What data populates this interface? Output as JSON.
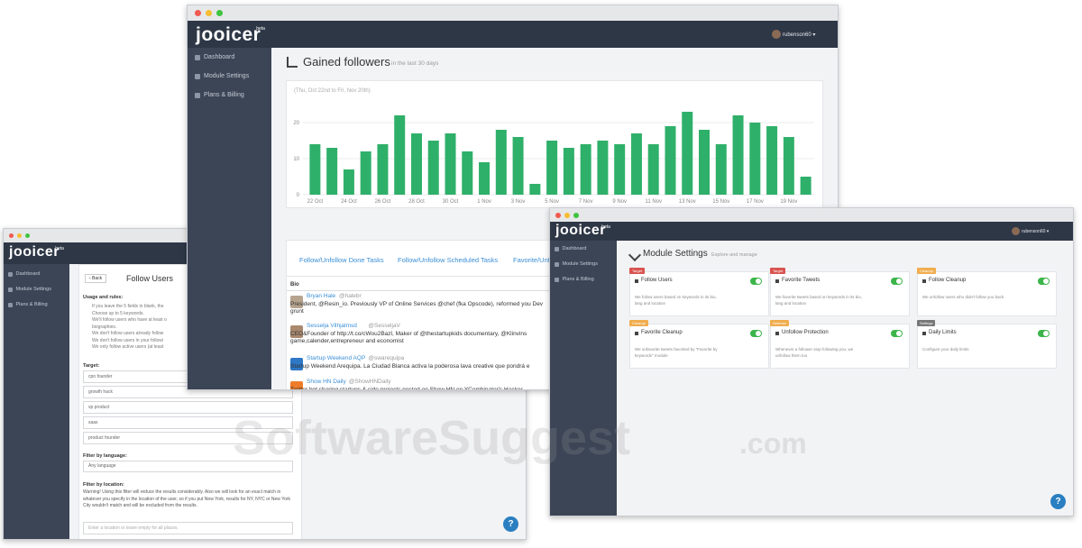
{
  "app": {
    "logo": "jooicer",
    "logo_badge": "beta",
    "user": "rubenson60",
    "sidebar": [
      "Dashboard",
      "Module Settings",
      "Plans & Billing"
    ],
    "help": "?"
  },
  "dashboard": {
    "title": "Gained followers",
    "subtitle": "in the last 30 days",
    "chart": {
      "type": "bar",
      "date_range": "(Thu, Oct 22nd to Fri, Nov 20th)",
      "categories": [
        "22 Oct",
        null,
        "24 Oct",
        null,
        "26 Oct",
        null,
        "28 Oct",
        null,
        "30 Oct",
        null,
        "1 Nov",
        null,
        "3 Nov",
        null,
        "5 Nov",
        null,
        "7 Nov",
        null,
        "9 Nov",
        null,
        "11 Nov",
        null,
        "13 Nov",
        null,
        "15 Nov",
        null,
        "17 Nov",
        null,
        "19 Nov",
        null
      ],
      "values": [
        14,
        13,
        7,
        12,
        14,
        22,
        17,
        15,
        17,
        12,
        9,
        18,
        16,
        3,
        15,
        13,
        14,
        15,
        14,
        17,
        14,
        19,
        23,
        18,
        14,
        22,
        20,
        19,
        16,
        5
      ],
      "color": "#2fb06a",
      "ylim": [
        0,
        25
      ],
      "yticks": [
        0,
        10,
        20
      ],
      "grid": true
    },
    "tabs": [
      "Follow/Unfollow Done Tasks",
      "Follow/Unfollow Scheduled Tasks",
      "Favorite/Unf"
    ],
    "table": {
      "header": "Bio",
      "rows": [
        {
          "name": "Bryan Hale",
          "handle": "@halebr",
          "bio": "President, @Resin_io. Previously VP of Online Services @chef (fka Opscode), reformed you Dev grunt"
        },
        {
          "name": "Sesselja Vilhjalmsd",
          "handle": "@SesseljaV",
          "bio": "CEO&Founder of http://t.co/cWou2Bazl, Maker of @thestartupkids documentary, @Klinvins game,calender,entrepreneur and economist"
        },
        {
          "name": "Startup Weekend AQP",
          "handle": "@swarequipa",
          "bio": "Startup Weekend Arequipa. La Ciudad Blanca activa la poderosa lava creative que pondrá e"
        },
        {
          "name": "Show HN Daily",
          "handle": "@ShowHNDaily",
          "bio": "Twitter bot sharing startups & side projects posted on Show HN on YCombinator's Hacker"
        }
      ]
    }
  },
  "follow_users": {
    "back": "‹ Back",
    "title": "Follow Users",
    "usage_title": "Usage and rules:",
    "rules": [
      "If you leave the 5 fields in blank, the",
      "Choose up to 5 keywords.",
      "We'll follow users who have at least o",
      "biographies.",
      "We don't follow users already follow",
      "We don't follow users in your followi",
      "We only follow active users (at least"
    ],
    "target_label": "Target:",
    "targets": [
      "cpo founder",
      "growth hack",
      "vp product",
      "saas",
      "product founder"
    ],
    "language_label": "Filter by language:",
    "language_value": "Any language",
    "location_label": "Filter by location:",
    "location_warning": "Warning! Using this filter will reduce the results considerably. Also we will look for an exact match in whatever you specify in the location of the user, so if you put New York, results for NY, NYC or New York City wouldn't match and will be excluded from the results.",
    "location_placeholder": "Enter a location or leave empty for all places."
  },
  "module_settings": {
    "title": "Module Settings",
    "subtitle": "Explore and manage",
    "cards": [
      {
        "tag": "Target",
        "title": "Follow Users",
        "description": "We follow users based on keywords in its bio, lang and location"
      },
      {
        "tag": "Target",
        "title": "Favorite Tweets",
        "description": "We favorite tweets based on keywords in its bio, lang and location"
      },
      {
        "tag": "Cleanup",
        "title": "Follow Cleanup",
        "description": "We unfollow users who didn't follow you back"
      },
      {
        "tag": "Cleanup",
        "title": "Favorite Cleanup",
        "description": "We unfavorite tweets favorited by \"Favorite by keywords\" module"
      },
      {
        "tag": "Defense",
        "title": "Unfollow Protection",
        "description": "Whenever a follower stop following you, we unfollow them too"
      },
      {
        "tag": "Settings",
        "title": "Daily Limits",
        "description": "Configure your daily limits"
      }
    ]
  },
  "watermark": {
    "name": "SoftwareSuggest",
    "suffix": ".com"
  }
}
